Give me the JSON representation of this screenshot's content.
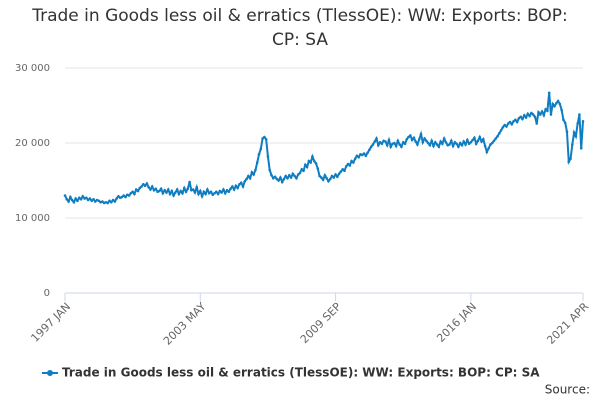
{
  "chart_data": {
    "type": "line",
    "title": "Trade in Goods less oil & erratics (TlessOE): WW: Exports: BOP: CP: SA",
    "source_label": "Source:",
    "categories": [
      "1997 JAN",
      null,
      null,
      null,
      null,
      null,
      null,
      null,
      null,
      null,
      null,
      null,
      null,
      null,
      null,
      null,
      null,
      null,
      null,
      null,
      null,
      null,
      null,
      null,
      null,
      null,
      null,
      null,
      null,
      null,
      null,
      null,
      null,
      null,
      null,
      null,
      null,
      null,
      null,
      null,
      null,
      null,
      null,
      null,
      null,
      null,
      null,
      null,
      null,
      null,
      null,
      null,
      null,
      null,
      null,
      null,
      null,
      null,
      null,
      null,
      null,
      null,
      null,
      null,
      null,
      null,
      null,
      null,
      null,
      null,
      null,
      null,
      null,
      null,
      null,
      null,
      "2003 MAY",
      null,
      null,
      null,
      null,
      null,
      null,
      null,
      null,
      null,
      null,
      null,
      null,
      null,
      null,
      null,
      null,
      null,
      null,
      null,
      null,
      null,
      null,
      null,
      null,
      null,
      null,
      null,
      null,
      null,
      null,
      null,
      null,
      null,
      null,
      null,
      null,
      null,
      null,
      null,
      null,
      null,
      null,
      null,
      null,
      null,
      null,
      null,
      null,
      null,
      null,
      null,
      null,
      null,
      null,
      null,
      null,
      null,
      null,
      null,
      null,
      null,
      null,
      null,
      null,
      null,
      null,
      null,
      null,
      null,
      null,
      null,
      null,
      null,
      null,
      null,
      "2009 SEP",
      null,
      null,
      null,
      null,
      null,
      null,
      null,
      null,
      null,
      null,
      null,
      null,
      null,
      null,
      null,
      null,
      null,
      null,
      null,
      null,
      null,
      null,
      null,
      null,
      null,
      null,
      null,
      null,
      null,
      null,
      null,
      null,
      null,
      null,
      null,
      null,
      null,
      null,
      null,
      null,
      null,
      null,
      null,
      null,
      null,
      null,
      null,
      null,
      null,
      null,
      null,
      null,
      null,
      null,
      null,
      null,
      null,
      null,
      null,
      null,
      null,
      null,
      null,
      null,
      null,
      null,
      null,
      null,
      null,
      null,
      null,
      null,
      null,
      null,
      null,
      "2016 JAN",
      null,
      null,
      null,
      null,
      null,
      null,
      null,
      null,
      null,
      null,
      null,
      null,
      null,
      null,
      null,
      null,
      null,
      null,
      null,
      null,
      null,
      null,
      null,
      null,
      null,
      null,
      null,
      null,
      null,
      null,
      null,
      null,
      null,
      null,
      null,
      null,
      null,
      null,
      null,
      null,
      null,
      null,
      null,
      null,
      null,
      null,
      null,
      null,
      null,
      null,
      null,
      null,
      null,
      null,
      null,
      null,
      null,
      null,
      null,
      null,
      null,
      null,
      "2021 APR"
    ],
    "series": [
      {
        "name": "Trade in Goods less oil & erratics (TlessOE): WW: Exports: BOP: CP: SA",
        "color": "#0f7dc2",
        "values": [
          13000,
          12500,
          12200,
          12800,
          12400,
          12100,
          12600,
          12300,
          12700,
          12500,
          12900,
          12600,
          12700,
          12400,
          12600,
          12300,
          12500,
          12200,
          12400,
          12300,
          12100,
          12200,
          12000,
          12100,
          12000,
          12300,
          12100,
          12400,
          12200,
          12600,
          12900,
          12700,
          12800,
          13000,
          12800,
          13100,
          13000,
          13300,
          13500,
          13200,
          13800,
          13600,
          14000,
          14200,
          14500,
          14300,
          14600,
          14100,
          13800,
          14200,
          13700,
          13900,
          13500,
          13600,
          13900,
          13300,
          13700,
          13400,
          13800,
          13200,
          13600,
          13000,
          13400,
          13800,
          13200,
          13600,
          13300,
          14000,
          13500,
          13900,
          14800,
          13700,
          13800,
          13400,
          14100,
          13200,
          13600,
          12900,
          13500,
          13200,
          13800,
          13300,
          13500,
          13100,
          13300,
          13500,
          13200,
          13600,
          13400,
          13800,
          13300,
          13700,
          13500,
          13900,
          14200,
          13800,
          14300,
          14000,
          14500,
          14700,
          14200,
          14900,
          15200,
          15600,
          15300,
          16100,
          15800,
          16400,
          17400,
          18500,
          19200,
          20600,
          20800,
          20500,
          18200,
          16400,
          15700,
          15300,
          15500,
          15200,
          15000,
          15400,
          14800,
          15200,
          15600,
          15300,
          15700,
          15400,
          15900,
          15600,
          15300,
          15800,
          16000,
          16500,
          16300,
          17100,
          16800,
          17600,
          17400,
          18200,
          17600,
          17300,
          16600,
          15600,
          15400,
          15100,
          15700,
          15300,
          14900,
          15200,
          15600,
          15400,
          15800,
          15500,
          15900,
          16200,
          16500,
          16300,
          16900,
          17200,
          17000,
          17600,
          17400,
          17900,
          18300,
          18100,
          18500,
          18400,
          18600,
          18300,
          18700,
          19100,
          19500,
          19800,
          20200,
          20600,
          19700,
          20100,
          19900,
          20300,
          20200,
          19700,
          20400,
          19500,
          19900,
          20000,
          19600,
          20300,
          19800,
          19500,
          20100,
          19900,
          20500,
          20800,
          21000,
          20400,
          20700,
          20200,
          19800,
          20500,
          21200,
          20100,
          20600,
          20300,
          20000,
          19700,
          20300,
          19600,
          20100,
          19800,
          19500,
          20200,
          19900,
          20600,
          20100,
          19700,
          19800,
          20300,
          19600,
          20100,
          19900,
          19500,
          20000,
          19700,
          20200,
          19800,
          20400,
          19900,
          20100,
          20400,
          20700,
          19900,
          20300,
          20800,
          20200,
          20500,
          19600,
          18800,
          19300,
          19800,
          20000,
          20300,
          20600,
          20900,
          21300,
          21700,
          22100,
          22400,
          22200,
          22600,
          22800,
          22500,
          22900,
          23100,
          22800,
          23300,
          23500,
          23200,
          23700,
          23400,
          23900,
          23600,
          24000,
          23800,
          23500,
          22600,
          24100,
          23800,
          24200,
          23700,
          24500,
          24300,
          26700,
          23800,
          25200,
          24900,
          25300,
          25600,
          25200,
          24400,
          23100,
          22700,
          21500,
          17500,
          17900,
          19800,
          21400,
          20900,
          22600,
          23800,
          19300,
          22900
        ]
      }
    ],
    "ylim": [
      0,
      30000
    ],
    "yticks": [
      0,
      {
        "value": 10000,
        "label": "10 000"
      },
      {
        "value": 20000,
        "label": "20 000"
      },
      {
        "value": 30000,
        "label": "30 000"
      }
    ],
    "grid": true
  }
}
